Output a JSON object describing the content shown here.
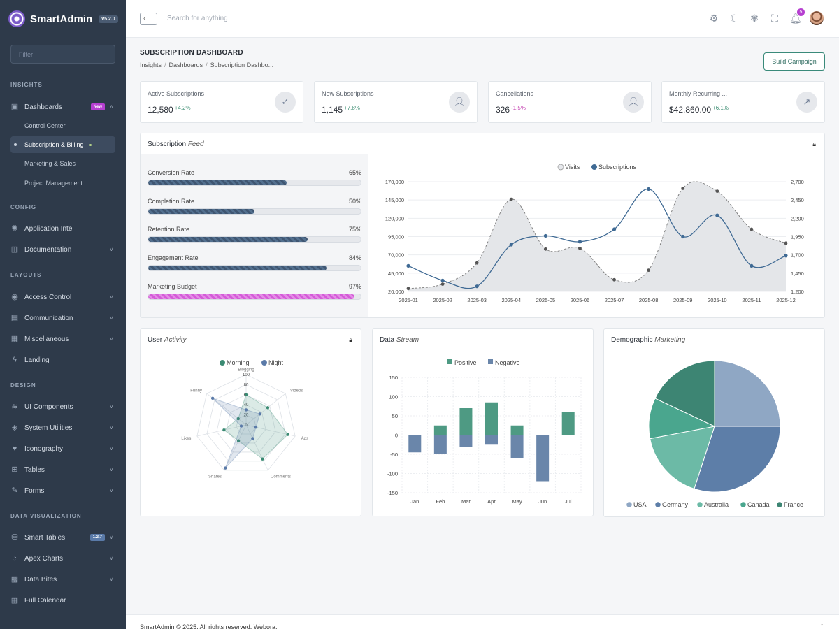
{
  "brand": {
    "name": "SmartAdmin",
    "version": "v5.2.0"
  },
  "sidebar": {
    "filter_placeholder": "Filter",
    "sections": {
      "insights": "INSIGHTS",
      "config": "CONFIG",
      "layouts": "LAYOUTS",
      "design": "DESIGN",
      "dataviz": "DATA VISUALIZATION"
    },
    "items": {
      "dashboards": "Dashboards",
      "dashboards_badge": "New",
      "control_center": "Control Center",
      "subscription_billing": "Subscription & Billing",
      "marketing_sales": "Marketing & Sales",
      "project_management": "Project Management",
      "application_intel": "Application Intel",
      "documentation": "Documentation",
      "access_control": "Access Control",
      "communication": "Communication",
      "miscellaneous": "Miscellaneous",
      "landing": "Landing",
      "ui_components": "UI Components",
      "system_utilities": "System Utilities",
      "iconography": "Iconography",
      "tables": "Tables",
      "forms": "Forms",
      "smart_tables": "Smart Tables",
      "smart_tables_badge": "1.2.7",
      "apex_charts": "Apex Charts",
      "data_bites": "Data Bites",
      "full_calendar": "Full Calendar"
    }
  },
  "topbar": {
    "search_placeholder": "Search for anything",
    "notifications_count": "5"
  },
  "page": {
    "title": "SUBSCRIPTION DASHBOARD",
    "breadcrumb": [
      "Insights",
      "Dashboards",
      "Subscription Dashbo..."
    ],
    "build_button": "Build Campaign"
  },
  "stats": [
    {
      "label": "Active Subscriptions",
      "value": "12,580",
      "change": "+4.2%",
      "icon": "check-icon"
    },
    {
      "label": "New Subscriptions",
      "value": "1,145",
      "change": "+7.8%",
      "icon": "user-plus-icon"
    },
    {
      "label": "Cancellations",
      "value": "326",
      "change": "-1.5%",
      "icon": "user-x-icon"
    },
    {
      "label": "Monthly Recurring ...",
      "value": "$42,860.00",
      "change": "+6.1%",
      "icon": "trend-icon"
    }
  ],
  "feed": {
    "title": "Subscription",
    "title_em": "Feed",
    "bars": [
      {
        "label": "Conversion Rate",
        "pct": "65%",
        "value": 65
      },
      {
        "label": "Completion Rate",
        "pct": "50%",
        "value": 50
      },
      {
        "label": "Retention Rate",
        "pct": "75%",
        "value": 75
      },
      {
        "label": "Engagement Rate",
        "pct": "84%",
        "value": 84
      },
      {
        "label": "Marketing Budget",
        "pct": "97%",
        "value": 97
      }
    ]
  },
  "activity": {
    "title": "User",
    "title_em": "Activity"
  },
  "stream": {
    "title": "Data",
    "title_em": "Stream"
  },
  "demographic": {
    "title": "Demographic",
    "title_em": "Marketing"
  },
  "footer": {
    "text": "SmartAdmin © 2025. All rights reserved, Webora."
  },
  "chart_data": [
    {
      "type": "area",
      "legend": [
        "Visits",
        "Subscriptions"
      ],
      "categories": [
        "2025-01",
        "2025-02",
        "2025-03",
        "2025-04",
        "2025-05",
        "2025-06",
        "2025-07",
        "2025-08",
        "2025-09",
        "2025-10",
        "2025-11",
        "2025-12"
      ],
      "y_left_ticks": [
        "20,000",
        "45,000",
        "70,000",
        "95,000",
        "120,000",
        "145,000",
        "170,000"
      ],
      "y_right_ticks": [
        "1,200",
        "1,450",
        "1,700",
        "1,950",
        "2,200",
        "2,450",
        "2,700"
      ],
      "ylim_left": [
        20000,
        170000
      ],
      "ylim_right": [
        1200,
        2700
      ],
      "series": [
        {
          "name": "Visits",
          "axis": "left",
          "values": [
            24000,
            30000,
            59000,
            146000,
            78000,
            79000,
            36000,
            49000,
            161000,
            157000,
            105000,
            86000
          ]
        },
        {
          "name": "Subscriptions",
          "axis": "right",
          "values": [
            1550,
            1350,
            1270,
            1840,
            1960,
            1880,
            2050,
            2600,
            1950,
            2240,
            1550,
            1690
          ]
        }
      ],
      "colors": {
        "Visits": "#cfd3d8",
        "Subscriptions": "#3f6a94"
      }
    },
    {
      "type": "radar",
      "legend": [
        "Morning",
        "Night"
      ],
      "axes": [
        "Blogging",
        "Videos",
        "Ads",
        "Comments",
        "Shares",
        "Likes",
        "Funny"
      ],
      "ticks": [
        "0",
        "20",
        "40",
        "60",
        "80",
        "100"
      ],
      "series": [
        {
          "name": "Morning",
          "values": [
            60,
            55,
            85,
            75,
            35,
            45,
            20
          ]
        },
        {
          "name": "Night",
          "values": [
            30,
            35,
            20,
            30,
            95,
            10,
            85
          ]
        }
      ],
      "colors": {
        "Morning": "#3a8a72",
        "Night": "#5a7aa8"
      }
    },
    {
      "type": "bar",
      "legend": [
        "Positive",
        "Negative"
      ],
      "categories": [
        "Jan",
        "Feb",
        "Mar",
        "Apr",
        "May",
        "Jun",
        "Jul"
      ],
      "y_ticks": [
        "150",
        "100",
        "50",
        "0",
        "-50",
        "-100",
        "-150"
      ],
      "ylim": [
        -150,
        150
      ],
      "series": [
        {
          "name": "Positive",
          "values": [
            0,
            25,
            70,
            85,
            25,
            0,
            60
          ]
        },
        {
          "name": "Negative",
          "values": [
            -45,
            -50,
            -30,
            -25,
            -60,
            -120,
            0
          ]
        }
      ],
      "colors": {
        "Positive": "#4e9a83",
        "Negative": "#6a86aa"
      }
    },
    {
      "type": "pie",
      "legend": [
        "USA",
        "Germany",
        "Australia",
        "Canada",
        "France"
      ],
      "values": [
        25,
        30,
        17,
        10,
        18
      ],
      "colors": [
        "#8fa7c4",
        "#5d7ea8",
        "#6cbaa6",
        "#4aa68e",
        "#3d8573"
      ]
    }
  ]
}
